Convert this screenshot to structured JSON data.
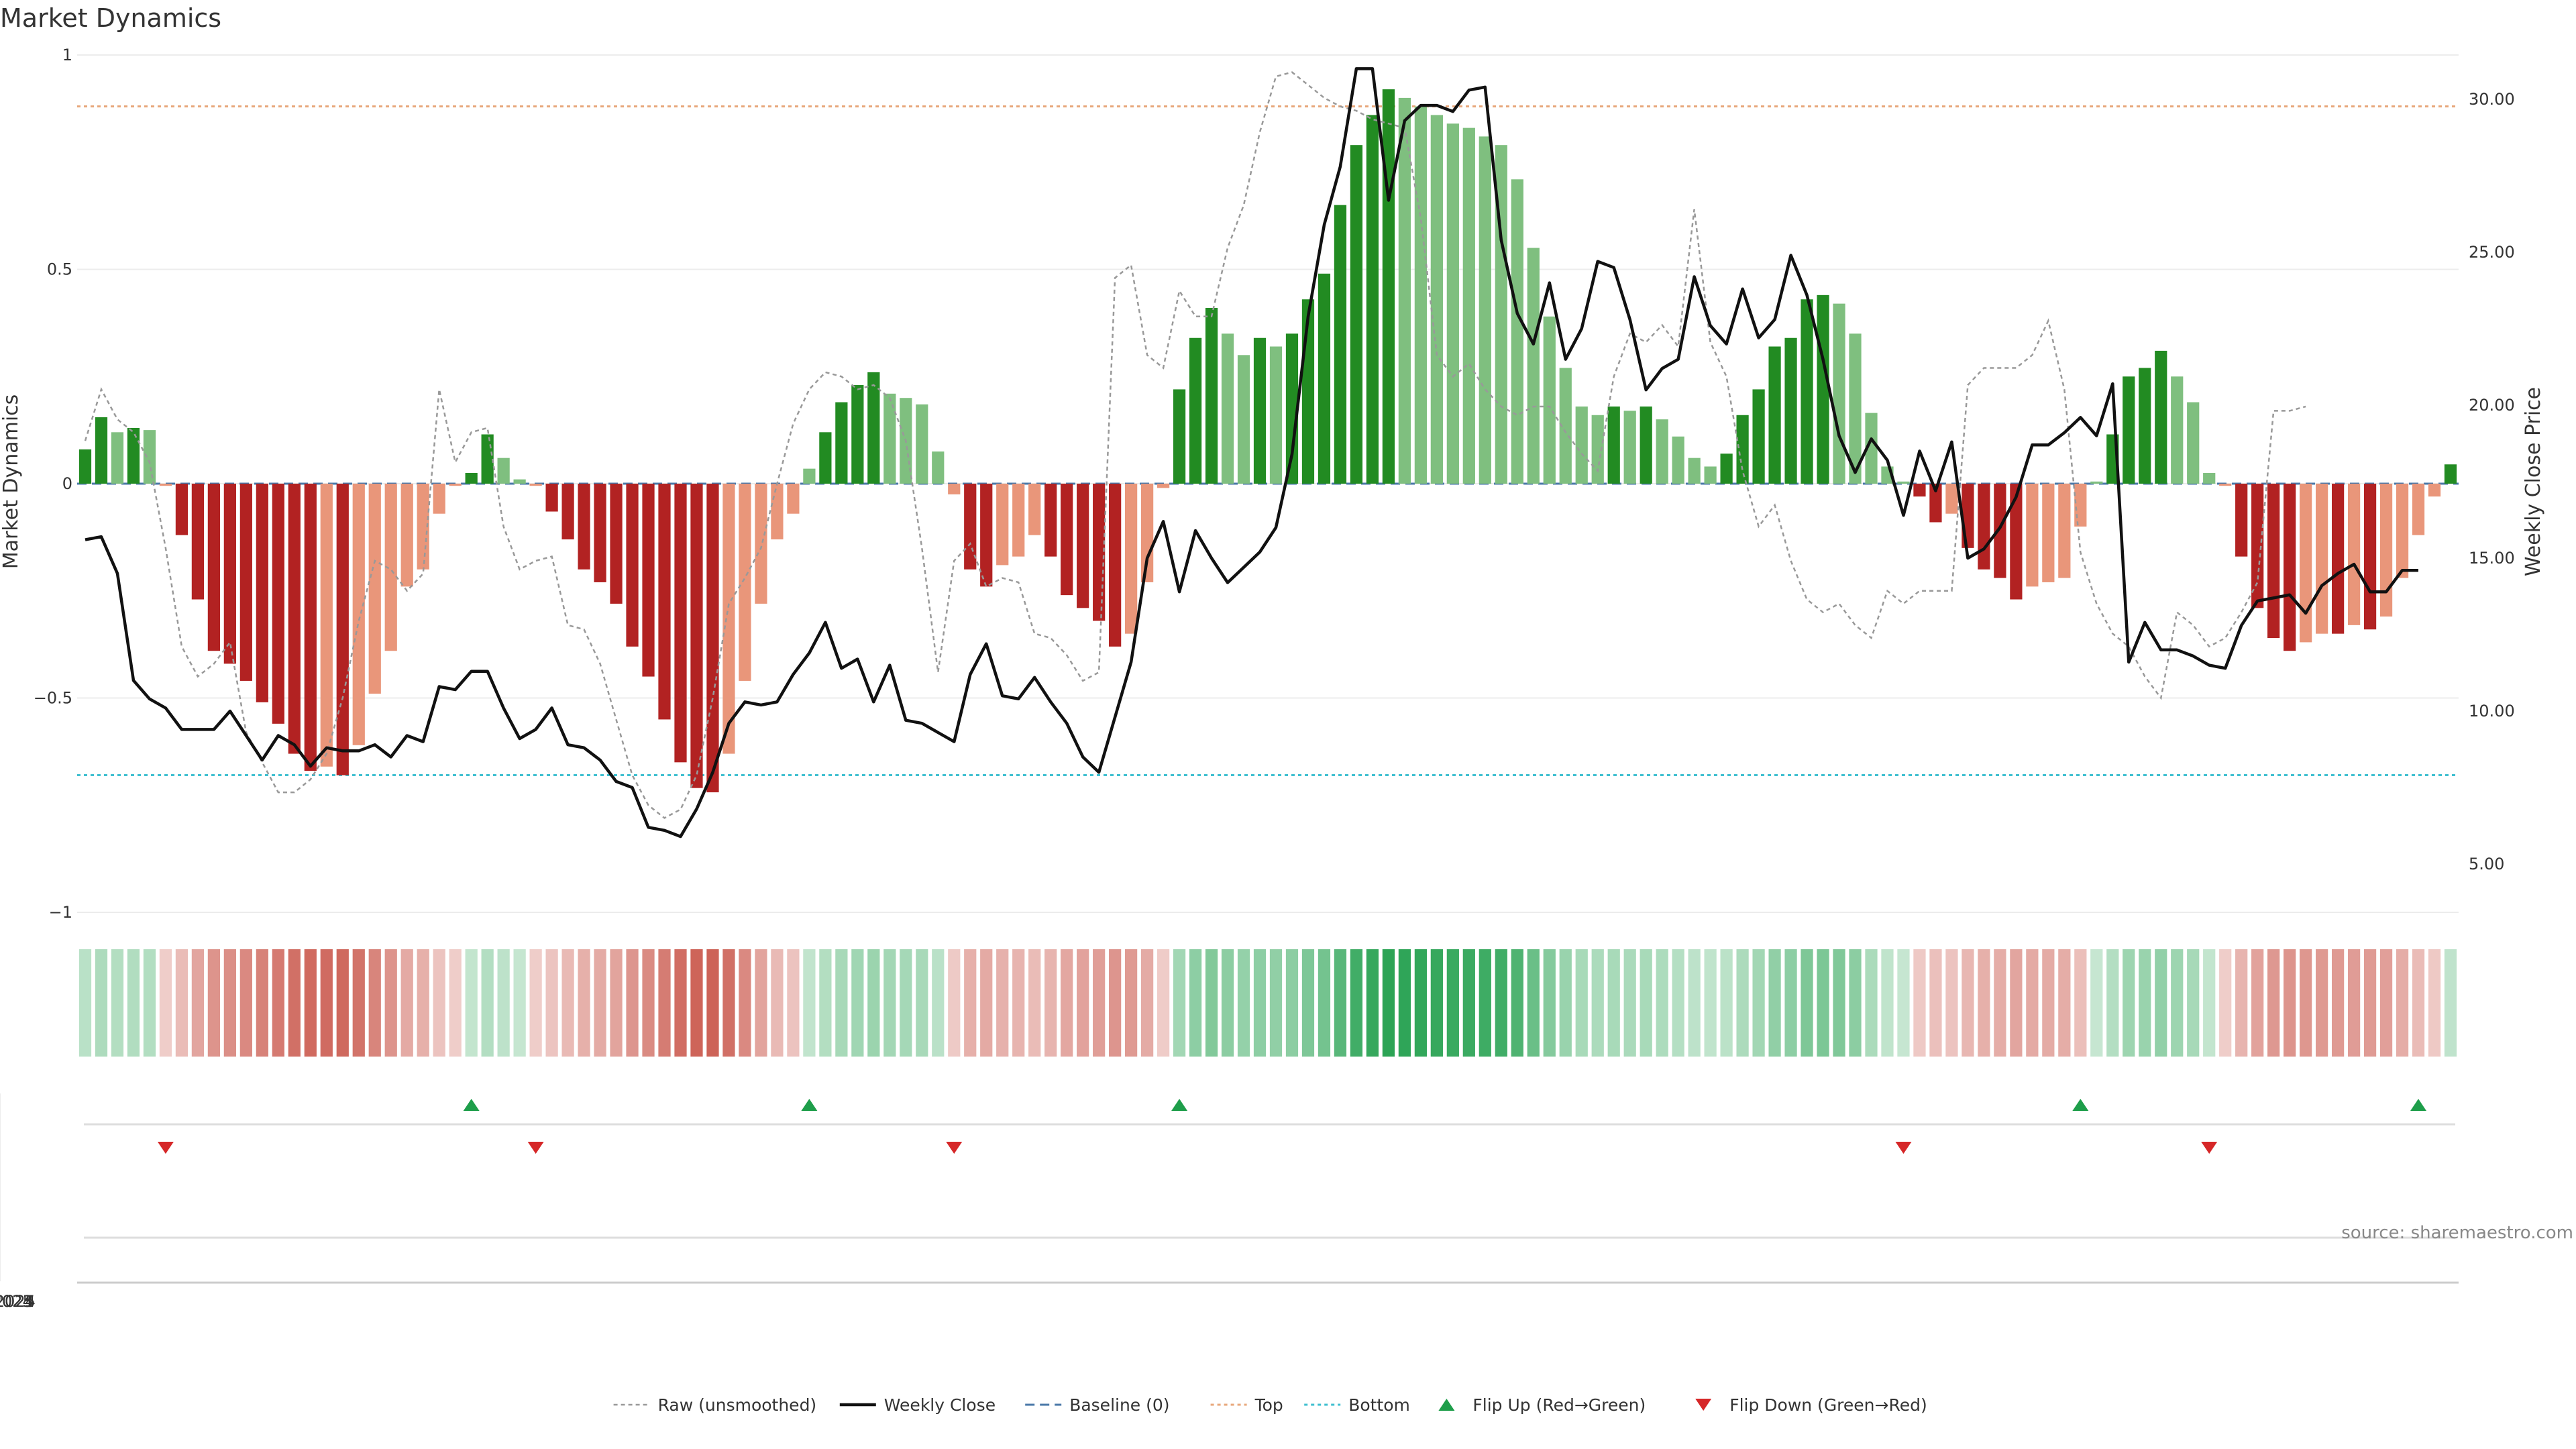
{
  "colors": {
    "strong_green": "#228b22",
    "light_green": "#7fbf7f",
    "strong_red": "#b22222",
    "light_red": "#e9967a",
    "close_line": "#111111",
    "raw_line": "#999999",
    "baseline": "#4a78a8",
    "top_line": "#e8a87c",
    "bottom_line": "#3fbfd0",
    "flip_up": "#1e9e4a",
    "flip_down": "#d62728",
    "grid": "#ececec"
  },
  "chart_data": {
    "type": "bar",
    "title": "Market Dynamics",
    "ylabel_left": "Market Dynamics",
    "ylabel_right": "Weekly Close Price",
    "ylim_left": [
      -1,
      1
    ],
    "ylim_right": [
      2.5,
      32.5
    ],
    "left_ticks": [
      {
        "v": 1,
        "label": "1"
      },
      {
        "v": 0.5,
        "label": "0.5"
      },
      {
        "v": 0,
        "label": "0"
      },
      {
        "v": -0.5,
        "label": "−0.5"
      },
      {
        "v": -1,
        "label": "−1"
      }
    ],
    "right_ticks": [
      {
        "v": 30,
        "label": "30.00"
      },
      {
        "v": 25,
        "label": "25.00"
      },
      {
        "v": 20,
        "label": "20.00"
      },
      {
        "v": 15,
        "label": "15.00"
      },
      {
        "v": 10,
        "label": "10.00"
      },
      {
        "v": 5,
        "label": "5.00"
      }
    ],
    "x_ticks": [
      {
        "i": 21.5,
        "label": "Jul 2023"
      },
      {
        "i": 47.7,
        "label": "Jan 2024"
      },
      {
        "i": 73.6,
        "label": "Jul 2024"
      },
      {
        "i": 100,
        "label": "Jan 2025"
      },
      {
        "i": 125.7,
        "label": "Jul 2025"
      }
    ],
    "top_level": 0.88,
    "bottom_level": -0.68,
    "baseline": 0,
    "grid": true,
    "legend_position": "bottom",
    "legend": [
      {
        "key": "raw",
        "label": "Raw (unsmoothed)"
      },
      {
        "key": "close",
        "label": "Weekly Close"
      },
      {
        "key": "baseline",
        "label": "Baseline (0)"
      },
      {
        "key": "top",
        "label": "Top"
      },
      {
        "key": "bottom",
        "label": "Bottom"
      },
      {
        "key": "flip_up",
        "label": "Flip Up (Red→Green)"
      },
      {
        "key": "flip_down",
        "label": "Flip Down (Green→Red)"
      }
    ],
    "bars": [
      0.08,
      0.155,
      0.12,
      0.13,
      0.125,
      -0.005,
      -0.12,
      -0.27,
      -0.39,
      -0.42,
      -0.46,
      -0.51,
      -0.56,
      -0.63,
      -0.67,
      -0.66,
      -0.68,
      -0.61,
      -0.49,
      -0.39,
      -0.24,
      -0.2,
      -0.07,
      -0.005,
      0.025,
      0.115,
      0.06,
      0.01,
      -0.005,
      -0.065,
      -0.13,
      -0.2,
      -0.23,
      -0.28,
      -0.38,
      -0.45,
      -0.55,
      -0.65,
      -0.71,
      -0.72,
      -0.63,
      -0.46,
      -0.28,
      -0.13,
      -0.07,
      0.035,
      0.12,
      0.19,
      0.23,
      0.26,
      0.21,
      0.2,
      0.185,
      0.075,
      -0.025,
      -0.2,
      -0.24,
      -0.19,
      -0.17,
      -0.12,
      -0.17,
      -0.26,
      -0.29,
      -0.32,
      -0.38,
      -0.35,
      -0.23,
      -0.01,
      0.22,
      0.34,
      0.41,
      0.35,
      0.3,
      0.34,
      0.32,
      0.35,
      0.43,
      0.49,
      0.65,
      0.79,
      0.86,
      0.92,
      0.9,
      0.88,
      0.86,
      0.84,
      0.83,
      0.81,
      0.79,
      0.71,
      0.55,
      0.39,
      0.27,
      0.18,
      0.16,
      0.18,
      0.17,
      0.18,
      0.15,
      0.11,
      0.06,
      0.04,
      0.07,
      0.16,
      0.22,
      0.32,
      0.34,
      0.43,
      0.44,
      0.42,
      0.35,
      0.165,
      0.04,
      0.005,
      -0.03,
      -0.09,
      -0.07,
      -0.15,
      -0.2,
      -0.22,
      -0.27,
      -0.24,
      -0.23,
      -0.22,
      -0.1,
      0.005,
      0.115,
      0.25,
      0.27,
      0.31,
      0.25,
      0.19,
      0.025,
      -0.005,
      -0.17,
      -0.29,
      -0.36,
      -0.39,
      -0.37,
      -0.35,
      -0.35,
      -0.33,
      -0.34,
      -0.31,
      -0.22,
      -0.12,
      -0.03,
      0.045
    ],
    "raw": [
      0.1,
      0.22,
      0.15,
      0.12,
      0.05,
      -0.15,
      -0.38,
      -0.45,
      -0.42,
      -0.37,
      -0.58,
      -0.65,
      -0.72,
      -0.72,
      -0.69,
      -0.63,
      -0.5,
      -0.32,
      -0.18,
      -0.2,
      -0.25,
      -0.21,
      0.22,
      0.05,
      0.12,
      0.13,
      -0.1,
      -0.2,
      -0.18,
      -0.17,
      -0.33,
      -0.34,
      -0.42,
      -0.55,
      -0.68,
      -0.75,
      -0.78,
      -0.76,
      -0.68,
      -0.5,
      -0.28,
      -0.22,
      -0.15,
      0.0,
      0.14,
      0.22,
      0.26,
      0.25,
      0.22,
      0.23,
      0.2,
      0.1,
      -0.15,
      -0.44,
      -0.18,
      -0.14,
      -0.24,
      -0.22,
      -0.23,
      -0.35,
      -0.36,
      -0.4,
      -0.46,
      -0.44,
      0.48,
      0.51,
      0.3,
      0.27,
      0.45,
      0.39,
      0.39,
      0.55,
      0.65,
      0.82,
      0.95,
      0.96,
      0.93,
      0.9,
      0.88,
      0.87,
      0.85,
      0.84,
      0.83,
      0.62,
      0.3,
      0.25,
      0.28,
      0.22,
      0.18,
      0.16,
      0.18,
      0.18,
      0.12,
      0.07,
      0.03,
      0.25,
      0.35,
      0.33,
      0.37,
      0.32,
      0.64,
      0.33,
      0.25,
      0.03,
      -0.1,
      -0.05,
      -0.18,
      -0.27,
      -0.3,
      -0.28,
      -0.33,
      -0.36,
      -0.25,
      -0.28,
      -0.25,
      -0.25,
      -0.25,
      0.23,
      0.27,
      0.27,
      0.27,
      0.3,
      0.38,
      0.22,
      -0.16,
      -0.28,
      -0.35,
      -0.38,
      -0.45,
      -0.5,
      -0.3,
      -0.33,
      -0.38,
      -0.36,
      -0.3,
      -0.23,
      0.17,
      0.17,
      0.18
    ],
    "close": [
      15.6,
      15.7,
      14.5,
      11.0,
      10.4,
      10.1,
      9.4,
      9.4,
      9.4,
      10.0,
      9.2,
      8.4,
      9.2,
      8.9,
      8.2,
      8.8,
      8.7,
      8.7,
      8.9,
      8.5,
      9.2,
      9.0,
      10.8,
      10.7,
      11.3,
      11.3,
      10.1,
      9.1,
      9.4,
      10.1,
      8.9,
      8.8,
      8.4,
      7.7,
      7.5,
      6.2,
      6.1,
      5.9,
      6.8,
      8.0,
      9.6,
      10.3,
      10.2,
      10.3,
      11.2,
      11.9,
      12.9,
      11.4,
      11.7,
      10.3,
      11.5,
      9.7,
      9.6,
      9.3,
      9.0,
      11.2,
      12.2,
      10.5,
      10.4,
      11.1,
      10.3,
      9.6,
      8.5,
      8.0,
      9.8,
      11.6,
      15.0,
      16.2,
      13.9,
      15.9,
      15.0,
      14.2,
      14.7,
      15.2,
      16.0,
      18.4,
      22.9,
      25.9,
      27.8,
      31.0,
      31.0,
      26.7,
      29.3,
      29.8,
      29.8,
      29.6,
      30.3,
      30.4,
      25.4,
      23.0,
      22.0,
      24.0,
      21.5,
      22.5,
      24.7,
      24.5,
      22.8,
      20.5,
      21.2,
      21.5,
      24.2,
      22.6,
      22.0,
      23.8,
      22.2,
      22.8,
      24.9,
      23.6,
      21.5,
      19.0,
      17.8,
      18.9,
      18.2,
      16.4,
      18.5,
      17.2,
      18.8,
      15.0,
      15.3,
      16.0,
      17.0,
      18.7,
      18.7,
      19.1,
      19.6,
      19.0,
      20.7,
      11.6,
      12.9,
      12.0,
      12.0,
      11.8,
      11.5,
      11.4,
      12.8,
      13.6,
      13.7,
      13.8,
      13.2,
      14.1,
      14.5,
      14.8,
      13.9,
      13.9,
      14.6,
      14.6
    ],
    "flip_up": [
      24,
      45,
      68,
      124,
      145
    ],
    "flip_down": [
      5,
      28,
      54,
      113,
      132
    ]
  },
  "source": "source: sharemaestro.com"
}
